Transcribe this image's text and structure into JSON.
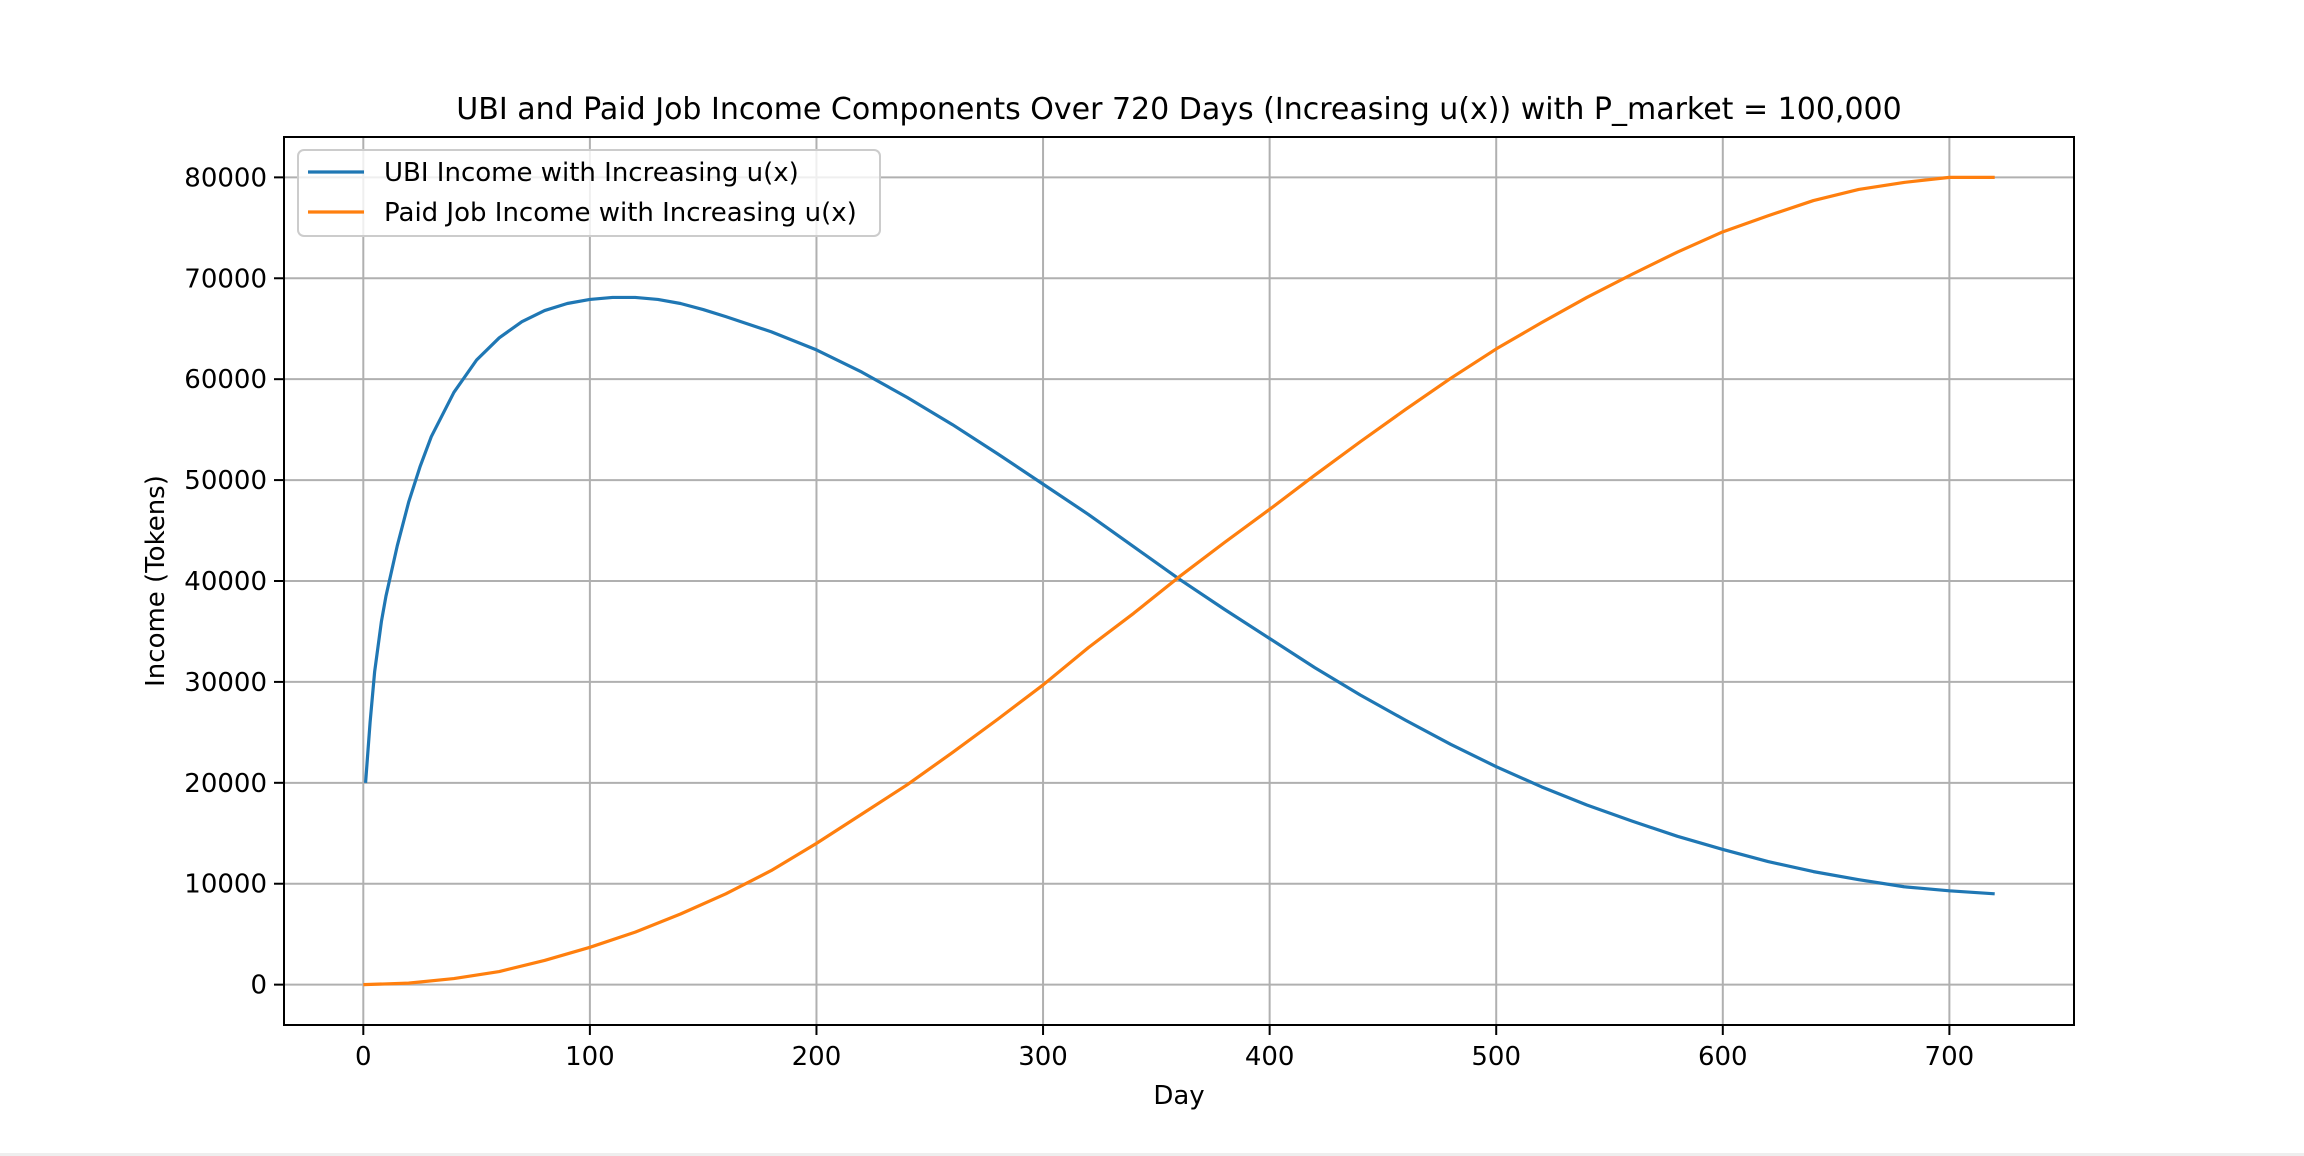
{
  "chart_data": {
    "type": "line",
    "title": "UBI and Paid Job Income Components Over 720 Days (Increasing u(x)) with P_market = 100,000",
    "xlabel": "Day",
    "ylabel": "Income (Tokens)",
    "xlim": [
      -35,
      755
    ],
    "ylim": [
      -4000,
      84000
    ],
    "xticks": [
      0,
      100,
      200,
      300,
      400,
      500,
      600,
      700
    ],
    "yticks": [
      0,
      10000,
      20000,
      30000,
      40000,
      50000,
      60000,
      70000,
      80000
    ],
    "grid": true,
    "legend_position": "top-left",
    "series": [
      {
        "name": "UBI Income with Increasing u(x)",
        "color": "#1f77b4",
        "x": [
          1,
          3,
          5,
          8,
          10,
          15,
          20,
          25,
          30,
          40,
          50,
          60,
          70,
          80,
          90,
          100,
          110,
          120,
          130,
          140,
          150,
          160,
          180,
          200,
          220,
          240,
          260,
          280,
          300,
          320,
          340,
          360,
          380,
          400,
          420,
          440,
          460,
          480,
          500,
          520,
          540,
          560,
          580,
          600,
          620,
          640,
          660,
          680,
          700,
          720
        ],
        "y": [
          20000,
          26000,
          31000,
          36000,
          38500,
          43500,
          47800,
          51300,
          54300,
          58700,
          61900,
          64100,
          65700,
          66800,
          67500,
          67900,
          68100,
          68100,
          67900,
          67500,
          66900,
          66200,
          64700,
          62900,
          60700,
          58200,
          55500,
          52600,
          49600,
          46600,
          43400,
          40200,
          37200,
          34300,
          31400,
          28700,
          26200,
          23800,
          21600,
          19600,
          17800,
          16200,
          14700,
          13400,
          12200,
          11200,
          10400,
          9700,
          9300,
          9000
        ]
      },
      {
        "name": "Paid Job Income with Increasing u(x)",
        "color": "#ff7f0e",
        "x": [
          0,
          20,
          40,
          60,
          80,
          100,
          120,
          140,
          160,
          180,
          200,
          220,
          240,
          260,
          280,
          300,
          320,
          340,
          360,
          380,
          400,
          420,
          440,
          460,
          480,
          500,
          520,
          540,
          560,
          580,
          600,
          620,
          640,
          660,
          680,
          700,
          720
        ],
        "y": [
          0,
          150,
          600,
          1300,
          2400,
          3700,
          5200,
          7000,
          9000,
          11300,
          14000,
          16900,
          19800,
          23000,
          26300,
          29700,
          33400,
          36800,
          40400,
          43800,
          47100,
          50500,
          53800,
          57000,
          60100,
          63000,
          65600,
          68100,
          70400,
          72600,
          74600,
          76200,
          77700,
          78800,
          79500,
          80000,
          80000
        ]
      }
    ]
  }
}
